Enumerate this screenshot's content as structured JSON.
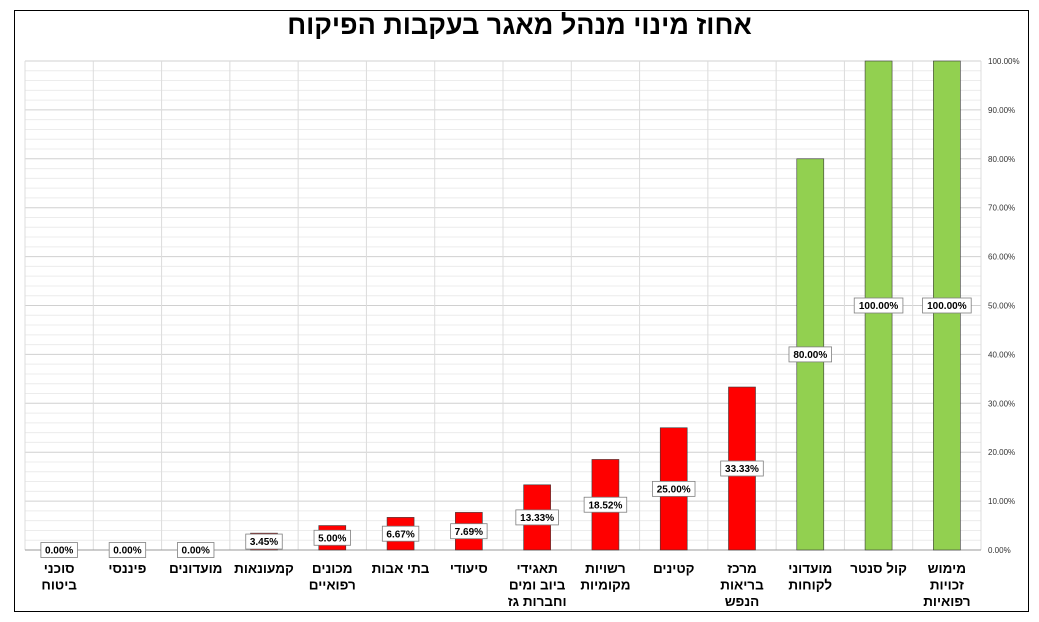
{
  "chart_data": {
    "type": "bar",
    "title": "אחוז מינוי מנהל מאגר בעקבות הפיקוח",
    "categories": [
      "מימוש זכויות רפואיות",
      "קול סנטר",
      "מועדוני לקוחות",
      "מרכז בריאות הנפש",
      "קטינים",
      "רשויות מקומיות",
      "תאגידי ביוב ומים וחברות גז",
      "סיעודי",
      "בתי אבות",
      "מכונים רפואיים",
      "קמעונאות",
      "מועדונים",
      "פיננסי",
      "סוכני ביטוח"
    ],
    "values": [
      100.0,
      100.0,
      80.0,
      33.33,
      25.0,
      18.52,
      13.33,
      7.69,
      6.67,
      5.0,
      3.45,
      0.0,
      0.0,
      0.0
    ],
    "data_labels": [
      "100.00%",
      "100.00%",
      "80.00%",
      "33.33%",
      "25.00%",
      "18.52%",
      "13.33%",
      "7.69%",
      "6.67%",
      "5.00%",
      "3.45%",
      "0.00%",
      "0.00%",
      "0.00%"
    ],
    "bar_colors": [
      "#92d050",
      "#92d050",
      "#92d050",
      "#ff0000",
      "#ff0000",
      "#ff0000",
      "#ff0000",
      "#ff0000",
      "#ff0000",
      "#ff0000",
      "#ff0000",
      "#ff0000",
      "#ff0000",
      "#ff0000"
    ],
    "yticks": [
      "0.00%",
      "10.00%",
      "20.00%",
      "30.00%",
      "40.00%",
      "50.00%",
      "60.00%",
      "70.00%",
      "80.00%",
      "90.00%",
      "100.00%"
    ],
    "ylim": [
      0,
      100
    ],
    "yaxis_position": "right",
    "category_order": "right-to-left",
    "grid": true,
    "xlabel": "",
    "ylabel": ""
  }
}
